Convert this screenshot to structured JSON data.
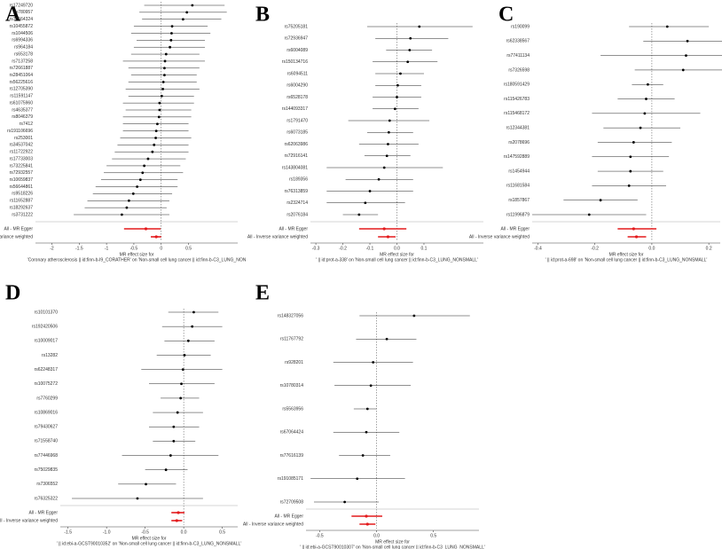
{
  "chart_data": [
    {
      "type": "forest",
      "panel": "A",
      "categories": [
        "rs17249720",
        "rs780957",
        "rs72564324",
        "rs10455872",
        "rs1044506",
        "rs6994336",
        "rs964184",
        "rs653178",
        "rs7137258",
        "rs72661887",
        "rs28451064",
        "rs56225616",
        "rs12705390",
        "rs11591147",
        "rs61075960",
        "rs4635377",
        "rs8046379",
        "rs7412",
        "rs191106696",
        "rs253001",
        "rs34537042",
        "rs11722922",
        "rs17733003",
        "rs73225841",
        "rs72932557",
        "rs10659837",
        "rs56644861",
        "rs9518226",
        "rs11652887",
        "rs18292637",
        "rs3731222"
      ],
      "values": [
        0.57,
        0.47,
        0.4,
        0.2,
        0.19,
        0.18,
        0.16,
        0.09,
        0.07,
        0.06,
        0.06,
        0.04,
        0.03,
        0.01,
        -0.03,
        -0.03,
        -0.04,
        -0.07,
        -0.09,
        -0.1,
        -0.13,
        -0.16,
        -0.24,
        -0.31,
        -0.34,
        -0.38,
        -0.44,
        -0.51,
        -0.59,
        -0.63,
        -0.72
      ],
      "lower": [
        -0.31,
        -0.4,
        -0.35,
        -0.5,
        -0.55,
        -0.45,
        -0.5,
        -0.55,
        -0.7,
        -0.6,
        -0.55,
        -0.6,
        -0.65,
        -0.6,
        -0.7,
        -0.65,
        -0.7,
        -0.7,
        -0.7,
        -0.75,
        -0.8,
        -0.85,
        -0.9,
        -1.0,
        -1.05,
        -1.1,
        -1.2,
        -1.25,
        -1.35,
        -1.4,
        -1.6
      ],
      "upper": [
        1.16,
        1.2,
        1.1,
        0.85,
        0.9,
        0.8,
        0.8,
        0.7,
        0.8,
        0.7,
        0.65,
        0.65,
        0.7,
        0.6,
        0.6,
        0.55,
        0.55,
        0.5,
        0.5,
        0.55,
        0.5,
        0.5,
        0.45,
        0.35,
        0.4,
        0.3,
        0.3,
        0.2,
        0.15,
        0.1,
        0.15
      ],
      "summary_labels": [
        "All - MR Egger",
        "All - Inverse variance weighted"
      ],
      "summary_values": [
        -0.28,
        -0.09
      ],
      "summary_lower": [
        -0.68,
        -0.19
      ],
      "summary_upper": [
        -0.01,
        0.0
      ],
      "xlabel": [
        "MR effect size for",
        "'Coronary atherosclerosis || id:finn-b-I9_CORATHER' on 'Non-small cell lung cancer || id:finn-b-C3_LUNG_NON"
      ],
      "xlim": [
        -2.3,
        1.4
      ],
      "xticks": [
        -2,
        -1.5,
        -1,
        -0.5,
        0,
        0.5
      ]
    },
    {
      "type": "forest",
      "panel": "B",
      "categories": [
        "rs75205181",
        "rs72936947",
        "rs6004089",
        "rs150134716",
        "rs6094511",
        "rs6004290",
        "rs6528178",
        "rs144093317",
        "rs1791470",
        "rs6073185",
        "rs62063986",
        "rs72916141",
        "rs143804081",
        "rs189356",
        "rs76313859",
        "rs2324714",
        "rs2076184"
      ],
      "values": [
        0.083,
        0.05,
        0.047,
        0.04,
        0.013,
        0.003,
        0,
        -0.007,
        -0.027,
        -0.03,
        -0.033,
        -0.037,
        -0.047,
        -0.067,
        -0.1,
        -0.117,
        -0.14
      ],
      "lower": [
        -0.11,
        -0.08,
        -0.04,
        -0.09,
        -0.08,
        -0.08,
        -0.09,
        -0.09,
        -0.18,
        -0.11,
        -0.14,
        -0.12,
        -0.26,
        -0.19,
        -0.26,
        -0.26,
        -0.2
      ],
      "upper": [
        0.28,
        0.19,
        0.13,
        0.15,
        0.1,
        0.09,
        0.09,
        0.08,
        0.12,
        0.06,
        0.08,
        0.05,
        0.17,
        0.06,
        0.06,
        0.03,
        -0.07
      ],
      "summary_labels": [
        "All - MR Egger",
        "All - Inverse variance weighted"
      ],
      "summary_values": [
        -0.047,
        -0.033
      ],
      "summary_lower": [
        -0.14,
        -0.07
      ],
      "summary_upper": [
        0.035,
        -0.005
      ],
      "xlabel": [
        "MR effect size for",
        "' || id:prot-a-338' on 'Non-small cell lung cancer || id:finn-b-C3_LUNG_NONSMALL'"
      ],
      "xlim": [
        -0.32,
        0.32
      ],
      "xticks": [
        -0.3,
        -0.2,
        -0.1,
        {
          "value": 0,
          "label": "0.0"
        },
        0.1
      ]
    },
    {
      "type": "forest",
      "panel": "C",
      "categories": [
        "rs190099",
        "rs62338567",
        "rs77411134",
        "rs7326598",
        "rs180591429",
        "rs115426783",
        "rs115468172",
        "rs12344381",
        "rs2078696",
        "rs147592889",
        "rs1454944",
        "rs11681584",
        "rs1857867",
        "rs11996879"
      ],
      "values": [
        0.054,
        0.125,
        0.12,
        0.11,
        -0.014,
        -0.02,
        -0.025,
        -0.04,
        -0.064,
        -0.075,
        -0.075,
        -0.08,
        -0.18,
        -0.22
      ],
      "lower": [
        -0.08,
        -0.03,
        -0.18,
        -0.06,
        -0.07,
        -0.12,
        -0.21,
        -0.17,
        -0.19,
        -0.21,
        -0.19,
        -0.21,
        -0.31,
        -0.42
      ],
      "upper": [
        0.2,
        0.3,
        0.4,
        0.28,
        0.04,
        0.08,
        0.17,
        0.1,
        0.07,
        0.06,
        0.04,
        0.05,
        -0.05,
        -0.02
      ],
      "summary_labels": [
        "All - MR Egger",
        "All - Inverse variance weighted"
      ],
      "summary_values": [
        -0.064,
        -0.054
      ],
      "summary_lower": [
        -0.12,
        -0.085
      ],
      "summary_upper": [
        0.016,
        -0.02
      ],
      "xlabel": [
        "MR effect size for",
        "' || id:prot-a-698' on 'Non-small cell lung cancer || id:finn-b-C3_LUNG_NONSMALL'"
      ],
      "xlim": [
        -0.42,
        0.24
      ],
      "xticks": [
        -0.4,
        -0.2,
        {
          "value": 0,
          "label": "0.0"
        },
        0.2
      ]
    },
    {
      "type": "forest",
      "panel": "D",
      "categories": [
        "rs10101370",
        "rs192420506",
        "rs10009017",
        "rs13282",
        "rs62248317",
        "rs10075272",
        "rs7760299",
        "rs10869016",
        "rs79430627",
        "rs71558740",
        "rs77446968",
        "rs75029835",
        "rs7306552",
        "rs76325322"
      ],
      "values": [
        0.13,
        0.11,
        0.06,
        0.01,
        -0.01,
        -0.03,
        -0.04,
        -0.08,
        -0.13,
        -0.13,
        -0.17,
        -0.23,
        -0.49,
        -0.6
      ],
      "lower": [
        -0.2,
        -0.28,
        -0.25,
        -0.35,
        -0.55,
        -0.45,
        -0.3,
        -0.4,
        -0.45,
        -0.4,
        -0.8,
        -0.5,
        -0.85,
        -1.45
      ],
      "upper": [
        0.45,
        0.5,
        0.4,
        0.35,
        0.5,
        0.4,
        0.2,
        0.25,
        0.2,
        0.15,
        0.45,
        0.05,
        -0.1,
        0.25
      ],
      "summary_labels": [
        "All - MR Egger",
        "All - Inverse variance weighted"
      ],
      "summary_values": [
        -0.07,
        -0.09
      ],
      "summary_lower": [
        -0.16,
        -0.16
      ],
      "summary_upper": [
        0.01,
        -0.02
      ],
      "xlabel": [
        "MR effect size for",
        "' || id:ebi-a-GCST90010352' on 'Non-small cell lung cancer || id:finn-b-C3_LUNG_NONSMALL'"
      ],
      "xlim": [
        -1.6,
        0.7
      ],
      "xticks": [
        -1.5,
        {
          "value": -1,
          "label": "-1.0"
        },
        -0.5,
        {
          "value": 0,
          "label": "0.0"
        },
        0.5
      ]
    },
    {
      "type": "forest",
      "panel": "E",
      "categories": [
        "rs148327056",
        "rs11767792",
        "rs928201",
        "rs10780314",
        "rs5563956",
        "rs67064424",
        "rs77616139",
        "rs191085171",
        "rs72709508"
      ],
      "values": [
        0.33,
        0.09,
        -0.03,
        -0.05,
        -0.08,
        -0.09,
        -0.12,
        -0.17,
        -0.28
      ],
      "lower": [
        -0.15,
        -0.18,
        -0.38,
        -0.37,
        -0.2,
        -0.38,
        -0.33,
        -0.58,
        -0.55
      ],
      "upper": [
        0.82,
        0.35,
        0.32,
        0.3,
        0.0,
        0.2,
        0.12,
        0.25,
        0.02
      ],
      "summary_labels": [
        "All - MR Egger",
        "All - Inverse variance weighted"
      ],
      "summary_values": [
        -0.09,
        -0.08
      ],
      "summary_lower": [
        -0.22,
        -0.15
      ],
      "summary_upper": [
        0.05,
        -0.01
      ],
      "xlabel": [
        "MR effect size for",
        "' || id:ebi-a-GCST90010307' on 'Non-small cell lung cancer || id:finn-b-C3_LUNG_NONSMALL'"
      ],
      "xlim": [
        -0.62,
        0.9
      ],
      "xticks": [
        -0.5,
        {
          "value": 0,
          "label": "0.0"
        },
        0.5
      ]
    }
  ]
}
